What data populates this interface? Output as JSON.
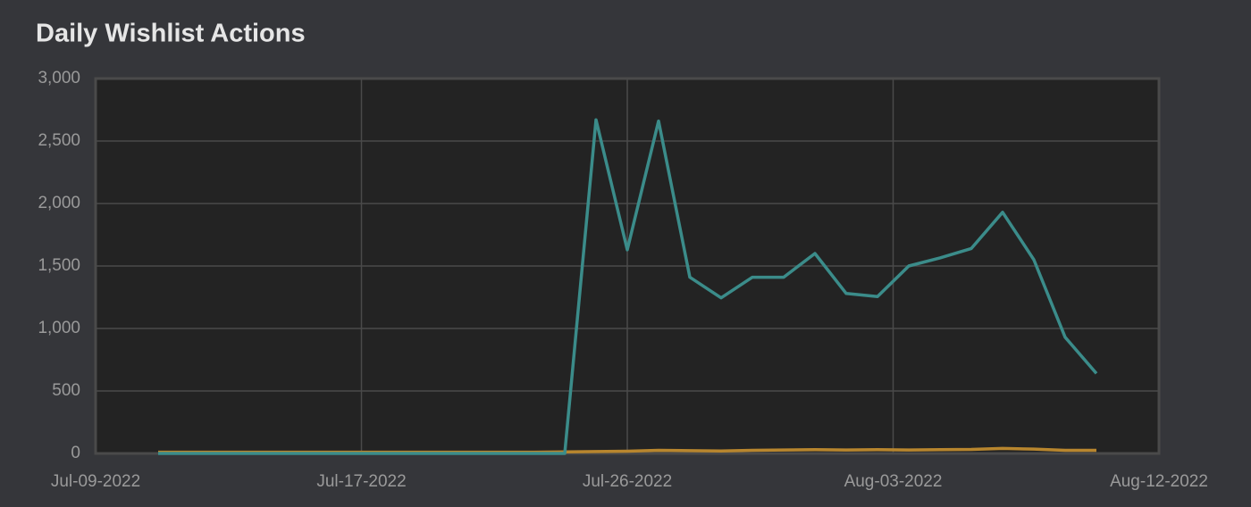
{
  "chart_data": {
    "type": "line",
    "title": "Daily Wishlist Actions",
    "x": [
      "2022-07-11",
      "2022-07-12",
      "2022-07-13",
      "2022-07-14",
      "2022-07-15",
      "2022-07-16",
      "2022-07-17",
      "2022-07-18",
      "2022-07-19",
      "2022-07-20",
      "2022-07-21",
      "2022-07-22",
      "2022-07-23",
      "2022-07-24",
      "2022-07-25",
      "2022-07-26",
      "2022-07-27",
      "2022-07-28",
      "2022-07-29",
      "2022-07-30",
      "2022-07-31",
      "2022-08-01",
      "2022-08-02",
      "2022-08-03",
      "2022-08-04",
      "2022-08-05",
      "2022-08-06",
      "2022-08-07",
      "2022-08-08",
      "2022-08-09",
      "2022-08-10"
    ],
    "series": [
      {
        "color": "#3b8c8a",
        "values": [
          0,
          0,
          0,
          0,
          0,
          0,
          0,
          0,
          0,
          0,
          0,
          0,
          0,
          0,
          2670,
          1630,
          2660,
          1410,
          1245,
          1410,
          1410,
          1600,
          1280,
          1255,
          1500,
          1565,
          1640,
          1930,
          1550,
          930,
          640
        ]
      },
      {
        "color": "#b8862e",
        "values": [
          10,
          10,
          10,
          10,
          10,
          10,
          10,
          10,
          10,
          10,
          10,
          10,
          10,
          12,
          15,
          18,
          25,
          22,
          20,
          25,
          28,
          30,
          28,
          30,
          28,
          30,
          32,
          40,
          35,
          25,
          25
        ]
      }
    ],
    "xlim": [
      "2022-07-09T00:00",
      "2022-08-12T00:00"
    ],
    "xticks": [
      {
        "value": "2022-07-09T00:00",
        "label": "Jul-09-2022"
      },
      {
        "value": "2022-07-17T12:00",
        "label": "Jul-17-2022"
      },
      {
        "value": "2022-07-26T00:00",
        "label": "Jul-26-2022"
      },
      {
        "value": "2022-08-03T12:00",
        "label": "Aug-03-2022"
      },
      {
        "value": "2022-08-12T00:00",
        "label": "Aug-12-2022"
      }
    ],
    "ylim": [
      0,
      3000
    ],
    "yticks": [
      0,
      500,
      {
        "value": 1000,
        "label": "1,000"
      },
      {
        "value": 1500,
        "label": "1,500"
      },
      {
        "value": 2000,
        "label": "2,000"
      },
      {
        "value": 2500,
        "label": "2,500"
      },
      {
        "value": 3000,
        "label": "3,000"
      }
    ],
    "grid": true
  }
}
